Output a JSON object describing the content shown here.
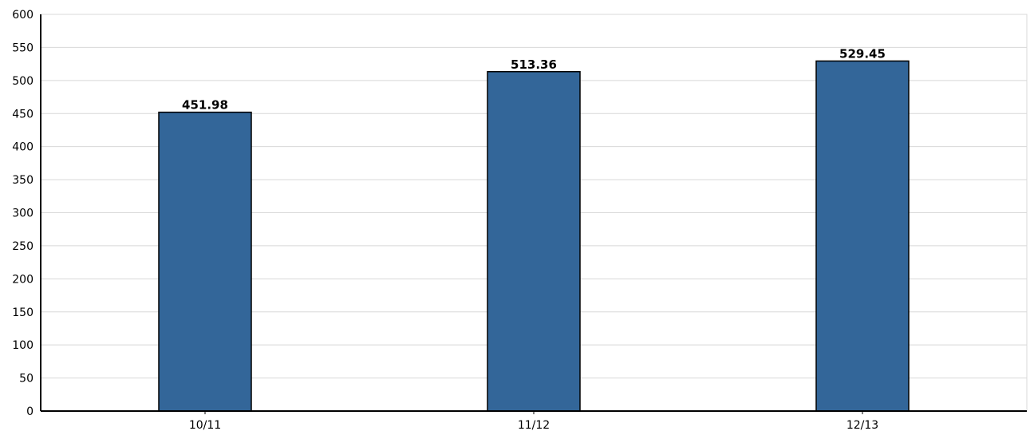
{
  "chart_data": {
    "type": "bar",
    "title": "",
    "xlabel": "",
    "ylabel": "",
    "categories": [
      "10/11",
      "11/12",
      "12/13"
    ],
    "values": [
      451.98,
      513.36,
      529.45
    ],
    "data_labels": [
      "451.98",
      "513.36",
      "529.45"
    ],
    "ylim": [
      0,
      600
    ],
    "yticks": [
      0,
      50,
      100,
      150,
      200,
      250,
      300,
      350,
      400,
      450,
      500,
      550,
      600
    ],
    "grid": true,
    "legend": "none",
    "colors": {
      "bar_fill": "#336699",
      "bar_border": "#000000",
      "grid": "#d8d8d8",
      "axis": "#000000",
      "frame": "#d8d8d8"
    }
  }
}
